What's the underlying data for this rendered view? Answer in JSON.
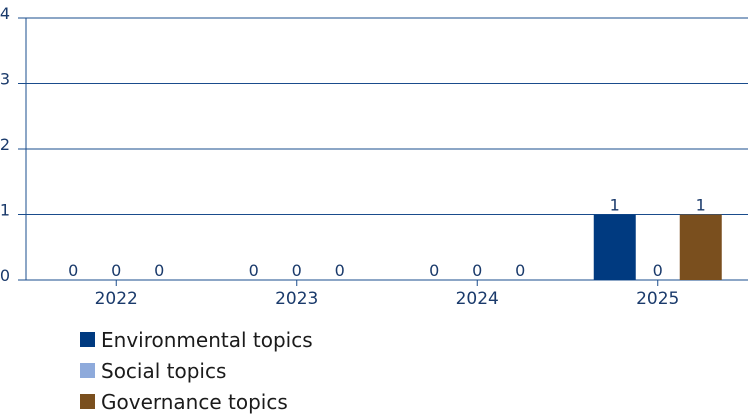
{
  "chart_data": {
    "type": "bar",
    "categories": [
      "2022",
      "2023",
      "2024",
      "2025"
    ],
    "series": [
      {
        "name": "Environmental topics",
        "values": [
          0,
          0,
          0,
          1
        ],
        "color": "#003a80"
      },
      {
        "name": "Social topics",
        "values": [
          0,
          0,
          0,
          0
        ],
        "color": "#8eaadb"
      },
      {
        "name": "Governance topics",
        "values": [
          0,
          0,
          0,
          1
        ],
        "color": "#7a4f1e"
      }
    ],
    "ylim": [
      0,
      4
    ],
    "yticks": [
      "0",
      "1",
      "2",
      "3",
      "4"
    ],
    "grid": true,
    "data_labels": true,
    "legend_position": "bottom-left",
    "axis_color": "#1a4c8c"
  }
}
